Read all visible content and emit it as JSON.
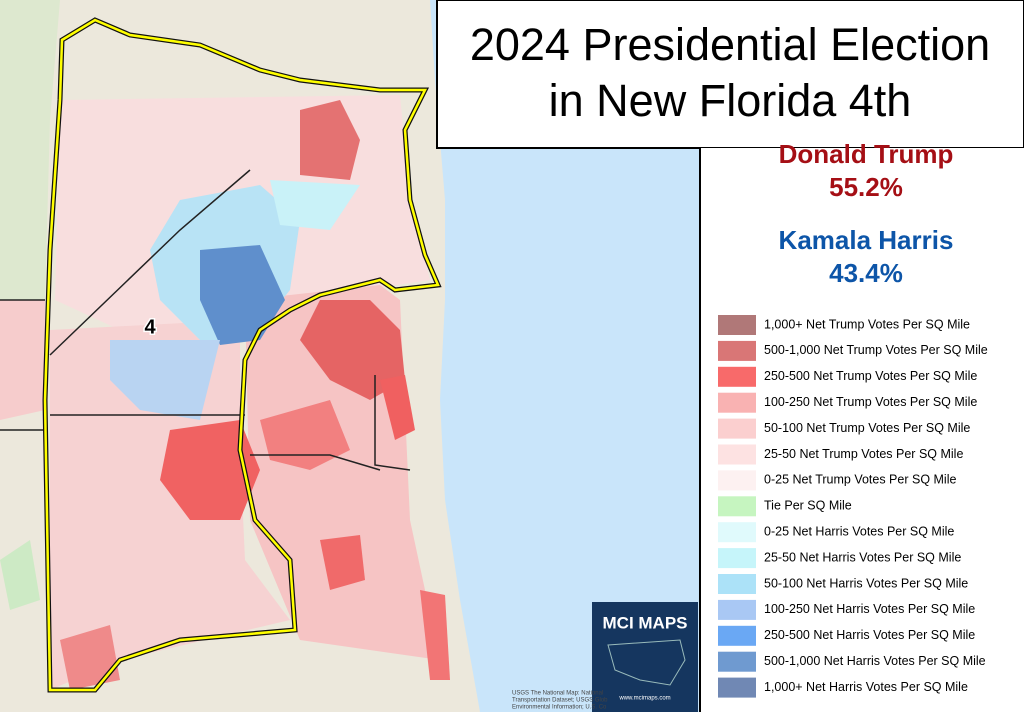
{
  "title_lines": [
    "2024 Presidential Election",
    "in New Florida 4th"
  ],
  "candidates": [
    {
      "name": "Donald Trump",
      "share": "55.2%",
      "color": "#a50f15"
    },
    {
      "name": "Kamala Harris",
      "share": "43.4%",
      "color": "#0d55a8"
    }
  ],
  "district_label": "4",
  "legend": [
    {
      "label": "1,000+ Net Trump Votes Per SQ Mile",
      "color": "#b07878"
    },
    {
      "label": "500-1,000 Net Trump Votes Per SQ Mile",
      "color": "#d97676"
    },
    {
      "label": "250-500 Net Trump Votes Per SQ Mile",
      "color": "#f86a6a"
    },
    {
      "label": "100-250 Net Trump Votes Per SQ Mile",
      "color": "#f9b2b2"
    },
    {
      "label": "50-100 Net Trump Votes Per SQ Mile",
      "color": "#fbcfcf"
    },
    {
      "label": "25-50 Net Trump Votes Per SQ Mile",
      "color": "#fde2e2"
    },
    {
      "label": "0-25 Net Trump Votes Per SQ Mile",
      "color": "#fdf1f1"
    },
    {
      "label": "Tie Per SQ Mile",
      "color": "#c6f5c0"
    },
    {
      "label": "0-25 Net Harris Votes Per SQ Mile",
      "color": "#e0fafc"
    },
    {
      "label": "25-50 Net Harris Votes Per SQ Mile",
      "color": "#c6f5fa"
    },
    {
      "label": "50-100 Net Harris Votes Per SQ Mile",
      "color": "#ace2f8"
    },
    {
      "label": "100-250 Net Harris Votes Per SQ Mile",
      "color": "#a9c8f4"
    },
    {
      "label": "250-500 Net Harris Votes Per SQ Mile",
      "color": "#6aa8f4"
    },
    {
      "label": "500-1,000 Net Harris Votes Per SQ Mile",
      "color": "#6f9ad0"
    },
    {
      "label": "1,000+ Net Harris Votes Per SQ Mile",
      "color": "#7088b4"
    }
  ],
  "logo": {
    "title": "MCI MAPS",
    "url": "www.mcimaps.com"
  },
  "attribution": [
    "USGS The National Map: National",
    "Transportation Dataset; USGS Glob",
    "Environmental Information; U.S. Co"
  ]
}
